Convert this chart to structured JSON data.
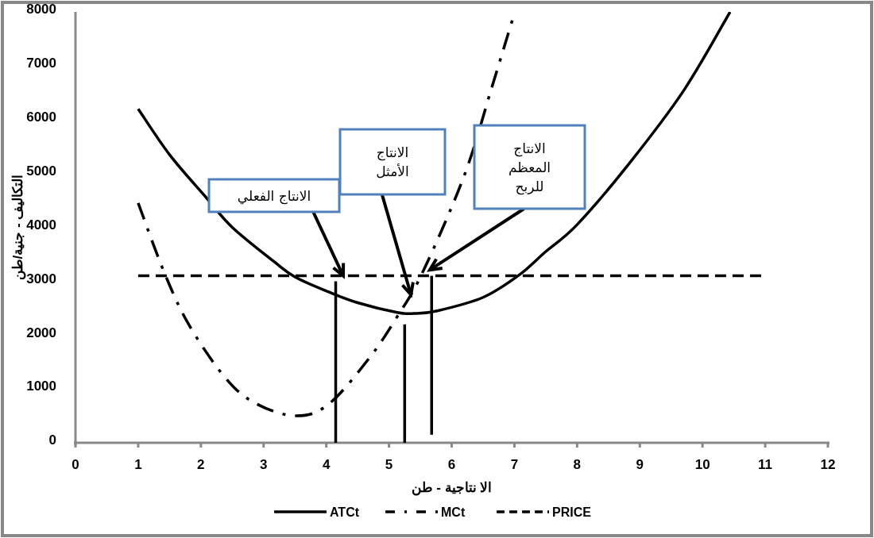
{
  "chart_data": {
    "type": "line",
    "xlabel": "الا نتاجية - طن",
    "ylabel": "التكاليف - جنية/طن",
    "xlim": [
      0,
      12
    ],
    "xticks": [
      0,
      1,
      2,
      3,
      4,
      5,
      6,
      7,
      8,
      9,
      10,
      11,
      12
    ],
    "ylim": [
      0,
      8000
    ],
    "yticks": [
      0,
      1000,
      2000,
      3000,
      4000,
      5000,
      6000,
      7000,
      8000
    ],
    "grid": false,
    "legend": "bottom",
    "marker": "none",
    "series": [
      {
        "name": "ATCt",
        "color": "#000000",
        "line_style": "solid",
        "x": [
          1,
          1.5,
          2.08,
          2.5,
          3.17,
          3.5,
          4.04,
          4.5,
          5.13,
          5.4,
          5.77,
          6.5,
          7.07,
          7.5,
          8,
          8.82,
          9.7,
          10.44
        ],
        "values": [
          6200,
          5350,
          4560,
          4000,
          3360,
          3080,
          2800,
          2600,
          2420,
          2400,
          2450,
          2700,
          3110,
          3550,
          4050,
          5170,
          6540,
          8000
        ]
      },
      {
        "name": "MCt",
        "color": "#000000",
        "line_style": "dashdot",
        "x": [
          1,
          1.42,
          1.81,
          2.38,
          2.86,
          3.51,
          4.04,
          4.69,
          5.13,
          5.53,
          6.2,
          6.64,
          6.97
        ],
        "values": [
          4450,
          3150,
          2190,
          1220,
          740,
          500,
          720,
          1580,
          2340,
          3150,
          4960,
          6600,
          7860
        ]
      },
      {
        "name": "PRICE",
        "color": "#000000",
        "line_style": "dashed",
        "x": [
          1,
          11
        ],
        "values": [
          3100,
          3100
        ]
      },
      {
        "color": "#000000",
        "line_style": "solid",
        "x": [
          4.15,
          4.15
        ],
        "values": [
          0,
          3000
        ]
      },
      {
        "color": "#000000",
        "line_style": "solid",
        "x": [
          5.25,
          5.25
        ],
        "values": [
          0,
          2200
        ]
      },
      {
        "color": "#000000",
        "line_style": "solid",
        "x": [
          5.68,
          5.68
        ],
        "values": [
          150,
          3100
        ]
      }
    ],
    "annotations": [
      {
        "text": "الانتاج الفعلي",
        "x": 4.27,
        "y": 3100
      },
      {
        "text": "الانتاج\nالأمثل",
        "x": 5.35,
        "y": 2750
      },
      {
        "text": "الانتاج\nالمعظم\nللربح",
        "x": 5.65,
        "y": 3210
      }
    ]
  }
}
